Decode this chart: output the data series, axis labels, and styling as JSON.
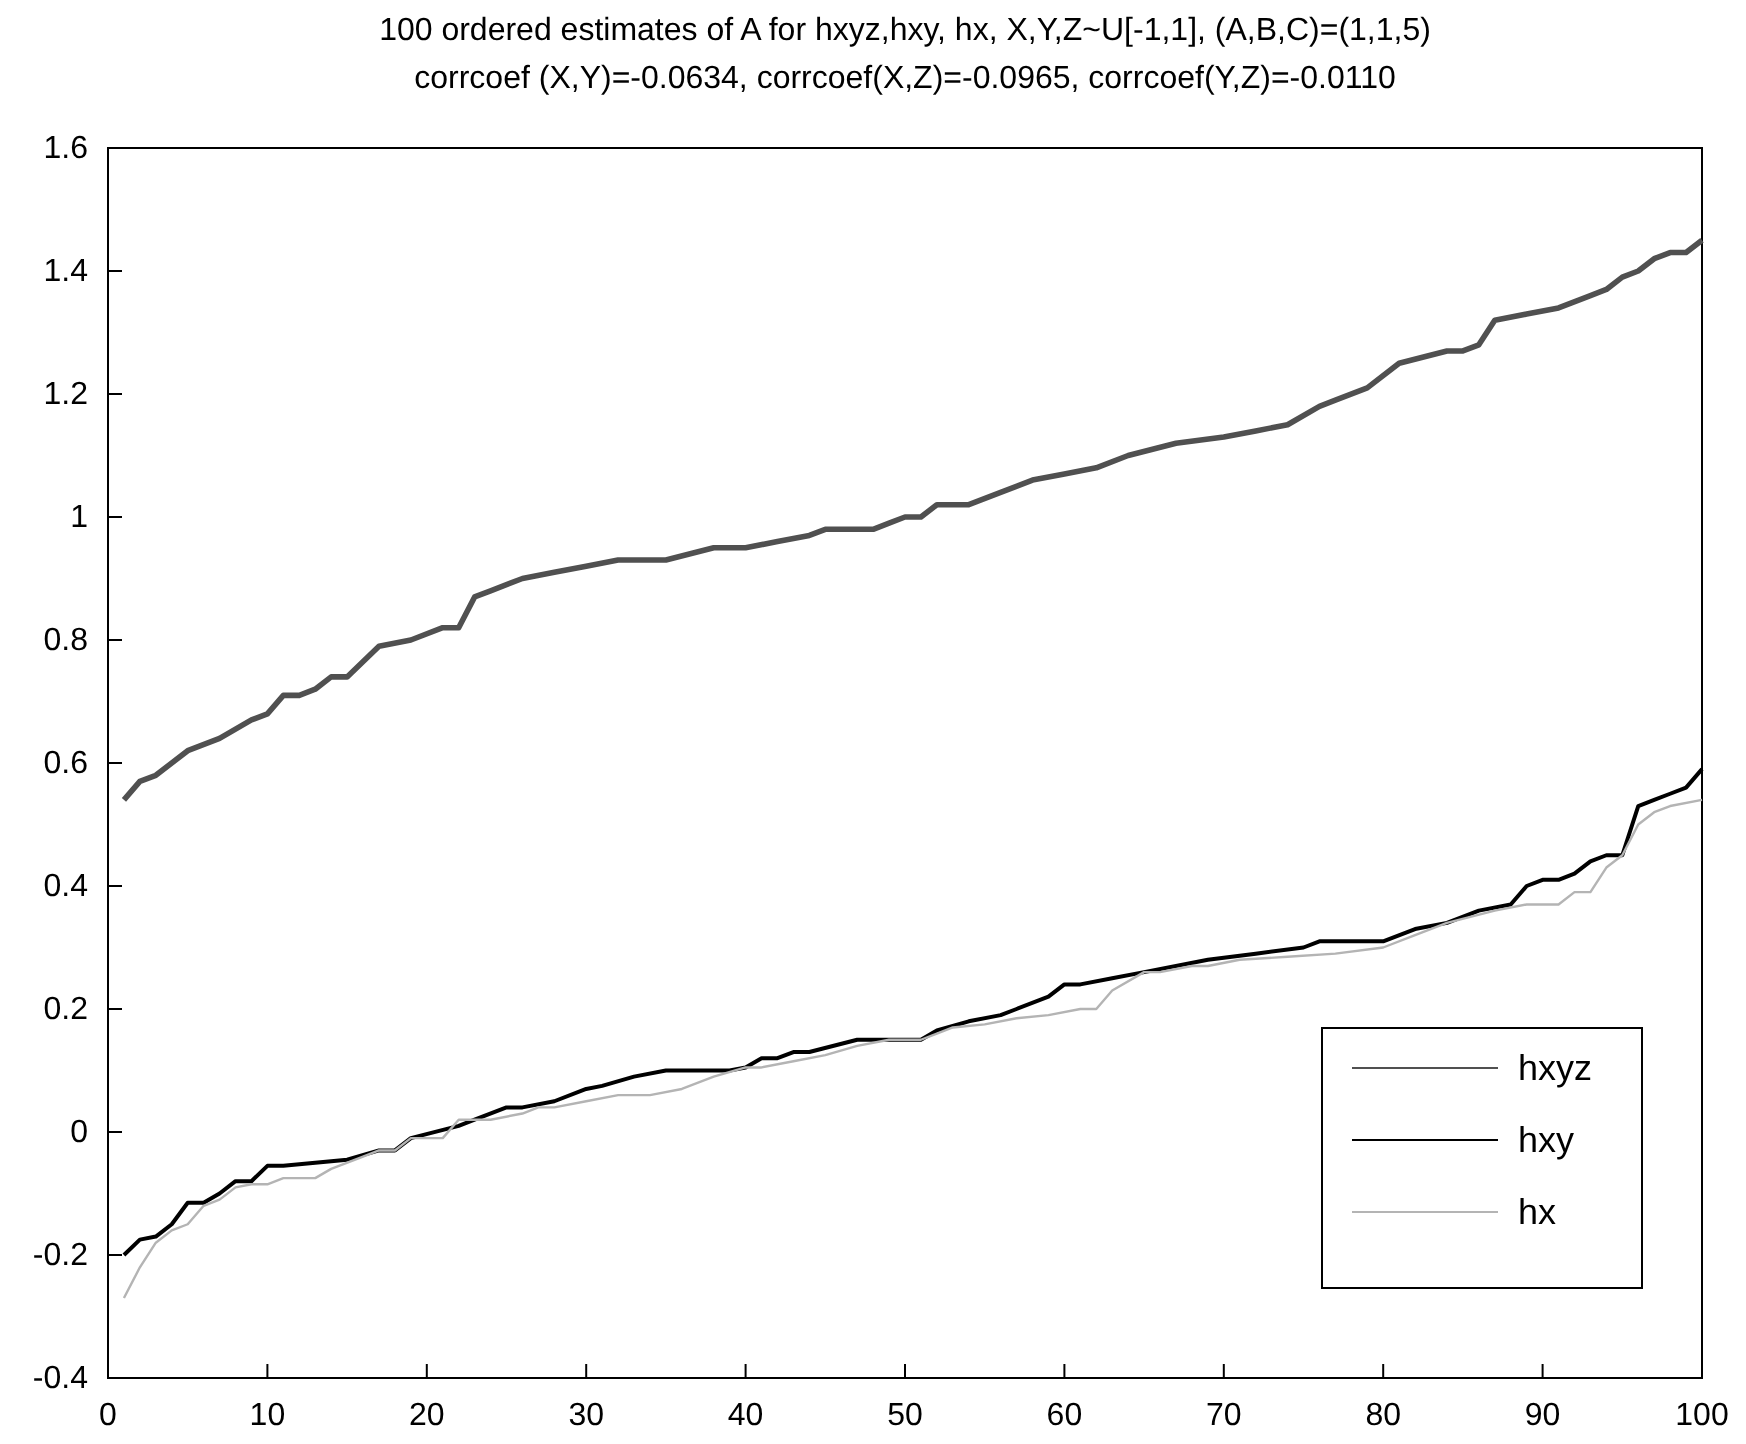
{
  "chart_data": {
    "type": "line",
    "title": "100 ordered estimates of A for hxyz,hxy, hx, X,Y,Z~U[-1,1], (A,B,C)=(1,1,5)",
    "subtitle": "corrcoef (X,Y)=-0.0634, corrcoef(X,Z)=-0.0965, corrcoef(Y,Z)=-0.0110",
    "xlim": [
      0,
      100
    ],
    "ylim": [
      -0.4,
      1.6
    ],
    "xticks": [
      0,
      10,
      20,
      30,
      40,
      50,
      60,
      70,
      80,
      90,
      100
    ],
    "yticks": [
      -0.4,
      -0.2,
      0,
      0.2,
      0.4,
      0.6,
      0.8,
      1,
      1.2,
      1.4,
      1.6
    ],
    "grid": false,
    "legend": "bottom right",
    "series": [
      {
        "name": "hxyz",
        "color": "#505050",
        "x": [
          1,
          2,
          3,
          5,
          7,
          9,
          10,
          11,
          12,
          13,
          14,
          15,
          17,
          19,
          21,
          22,
          23,
          24,
          26,
          28,
          30,
          32,
          35,
          38,
          40,
          42,
          44,
          45,
          48,
          49,
          50,
          51,
          52,
          54,
          56,
          58,
          60,
          62,
          64,
          67,
          70,
          72,
          74,
          76,
          77,
          79,
          81,
          84,
          85,
          86,
          87,
          89,
          91,
          93,
          94,
          95,
          96,
          97,
          98,
          99,
          100
        ],
        "values": [
          0.54,
          0.57,
          0.58,
          0.62,
          0.64,
          0.67,
          0.68,
          0.71,
          0.71,
          0.72,
          0.74,
          0.74,
          0.79,
          0.8,
          0.82,
          0.82,
          0.87,
          0.88,
          0.9,
          0.91,
          0.92,
          0.93,
          0.93,
          0.95,
          0.95,
          0.96,
          0.97,
          0.98,
          0.98,
          0.99,
          1.0,
          1.0,
          1.02,
          1.02,
          1.04,
          1.06,
          1.07,
          1.08,
          1.1,
          1.12,
          1.13,
          1.14,
          1.15,
          1.18,
          1.19,
          1.21,
          1.25,
          1.27,
          1.27,
          1.28,
          1.32,
          1.33,
          1.34,
          1.36,
          1.37,
          1.39,
          1.4,
          1.42,
          1.43,
          1.43,
          1.45
        ]
      },
      {
        "name": "hxy",
        "color": "#000000",
        "x": [
          1,
          2,
          3,
          4,
          5,
          6,
          7,
          8,
          9,
          10,
          11,
          13,
          15,
          17,
          18,
          19,
          22,
          23,
          25,
          26,
          28,
          30,
          31,
          33,
          35,
          36,
          39,
          40,
          41,
          42,
          43,
          44,
          47,
          50,
          51,
          52,
          54,
          56,
          57,
          59,
          60,
          61,
          63,
          65,
          67,
          69,
          72,
          75,
          76,
          80,
          82,
          84,
          86,
          88,
          89,
          90,
          91,
          92,
          93,
          94,
          95,
          96,
          97,
          98,
          99,
          100
        ],
        "values": [
          -0.2,
          -0.175,
          -0.17,
          -0.15,
          -0.115,
          -0.115,
          -0.1,
          -0.08,
          -0.08,
          -0.055,
          -0.055,
          -0.05,
          -0.045,
          -0.03,
          -0.03,
          -0.01,
          0.01,
          0.02,
          0.04,
          0.04,
          0.05,
          0.07,
          0.075,
          0.09,
          0.1,
          0.1,
          0.1,
          0.105,
          0.12,
          0.12,
          0.13,
          0.13,
          0.15,
          0.15,
          0.15,
          0.165,
          0.18,
          0.19,
          0.2,
          0.22,
          0.24,
          0.24,
          0.25,
          0.26,
          0.27,
          0.28,
          0.29,
          0.3,
          0.31,
          0.31,
          0.33,
          0.34,
          0.36,
          0.37,
          0.4,
          0.41,
          0.41,
          0.42,
          0.44,
          0.45,
          0.45,
          0.53,
          0.54,
          0.55,
          0.56,
          0.59
        ]
      },
      {
        "name": "hx",
        "color": "#b4b4b4",
        "x": [
          1,
          2,
          3,
          4,
          5,
          6,
          7,
          8,
          9,
          10,
          11,
          13,
          14,
          16,
          17,
          18,
          19,
          21,
          22,
          24,
          26,
          27,
          28,
          30,
          32,
          34,
          36,
          38,
          40,
          41,
          43,
          45,
          47,
          49,
          50,
          51,
          52,
          53,
          55,
          57,
          59,
          61,
          62,
          63,
          65,
          66,
          68,
          69,
          71,
          74,
          77,
          80,
          82,
          84,
          87,
          89,
          91,
          92,
          93,
          94,
          95,
          96,
          97,
          98,
          100
        ],
        "values": [
          -0.27,
          -0.22,
          -0.18,
          -0.16,
          -0.15,
          -0.12,
          -0.11,
          -0.09,
          -0.085,
          -0.085,
          -0.075,
          -0.075,
          -0.06,
          -0.04,
          -0.03,
          -0.03,
          -0.01,
          -0.01,
          0.02,
          0.02,
          0.03,
          0.04,
          0.04,
          0.05,
          0.06,
          0.06,
          0.07,
          0.09,
          0.105,
          0.105,
          0.115,
          0.125,
          0.14,
          0.15,
          0.15,
          0.15,
          0.16,
          0.17,
          0.175,
          0.185,
          0.19,
          0.2,
          0.2,
          0.23,
          0.26,
          0.26,
          0.27,
          0.27,
          0.28,
          0.285,
          0.29,
          0.3,
          0.32,
          0.34,
          0.36,
          0.37,
          0.37,
          0.39,
          0.39,
          0.43,
          0.45,
          0.5,
          0.52,
          0.53,
          0.54
        ]
      }
    ]
  }
}
